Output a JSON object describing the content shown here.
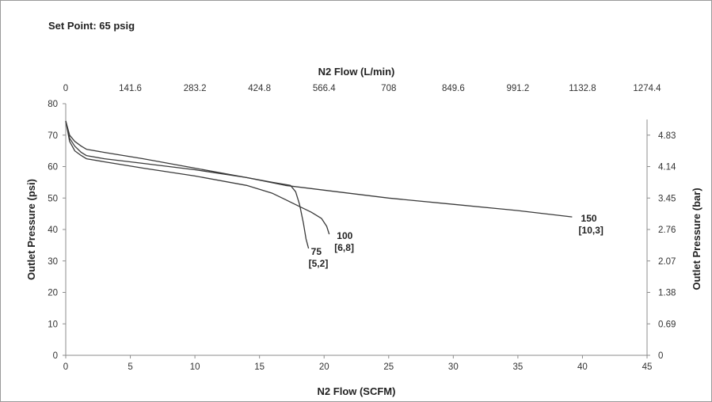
{
  "header": {
    "set_point": "Set Point: 65 psig"
  },
  "chart_data": {
    "type": "line",
    "title": "",
    "xlabel": "N2 Flow (SCFM)",
    "x2label": "N2 Flow (L/min)",
    "ylabel": "Outlet Pressure (psi)",
    "y2label": "Outlet Pressure (bar)",
    "xlim": [
      0,
      45
    ],
    "ylim": [
      0,
      80
    ],
    "x_ticks": [
      "0",
      "5",
      "10",
      "15",
      "20",
      "25",
      "30",
      "35",
      "40",
      "45"
    ],
    "x2_ticks": [
      "0",
      "141.6",
      "283.2",
      "424.8",
      "566.4",
      "708",
      "849.6",
      "991.2",
      "1132.8",
      "1274.4"
    ],
    "y_ticks": [
      "0",
      "10",
      "20",
      "30",
      "40",
      "50",
      "60",
      "70",
      "80"
    ],
    "y2_ticks": [
      {
        "value": 0,
        "label": "0"
      },
      {
        "value": 10,
        "label": "0.69"
      },
      {
        "value": 20,
        "label": "1.38"
      },
      {
        "value": 30,
        "label": "2.07"
      },
      {
        "value": 40,
        "label": "2.76"
      },
      {
        "value": 50,
        "label": "3.45"
      },
      {
        "value": 60,
        "label": "4.14"
      },
      {
        "value": 70,
        "label": "4.83"
      }
    ],
    "grid": false,
    "series": [
      {
        "name": "75 [5,2]",
        "label_lines": [
          "75",
          "[5,2]"
        ],
        "label_at": [
          18.8,
          32
        ],
        "points": [
          [
            0,
            74.5
          ],
          [
            0.3,
            69
          ],
          [
            0.7,
            66.5
          ],
          [
            1.2,
            64.5
          ],
          [
            1.6,
            63.5
          ],
          [
            3,
            62.5
          ],
          [
            6,
            61
          ],
          [
            10,
            59
          ],
          [
            14,
            56.5
          ],
          [
            16,
            55
          ],
          [
            17.4,
            54
          ],
          [
            17.8,
            52
          ],
          [
            18.1,
            48
          ],
          [
            18.4,
            42
          ],
          [
            18.6,
            37
          ],
          [
            18.8,
            34
          ]
        ]
      },
      {
        "name": "100 [6,8]",
        "label_lines": [
          "100",
          "[6,8]"
        ],
        "label_at": [
          20.8,
          37
        ],
        "points": [
          [
            0,
            74.5
          ],
          [
            0.3,
            68
          ],
          [
            0.7,
            65
          ],
          [
            1.2,
            63.5
          ],
          [
            1.6,
            62.5
          ],
          [
            3,
            61.5
          ],
          [
            6,
            59.5
          ],
          [
            10,
            57
          ],
          [
            14,
            54
          ],
          [
            16,
            51.5
          ],
          [
            17,
            49.5
          ],
          [
            18,
            47.5
          ],
          [
            19,
            45.5
          ],
          [
            19.8,
            43.5
          ],
          [
            20.2,
            41
          ],
          [
            20.4,
            38.5
          ]
        ]
      },
      {
        "name": "150 [10,3]",
        "label_lines": [
          "150",
          "[10,3]"
        ],
        "label_at": [
          39.7,
          42.5
        ],
        "points": [
          [
            0,
            74.5
          ],
          [
            0.3,
            70
          ],
          [
            0.7,
            68
          ],
          [
            1.2,
            66.5
          ],
          [
            1.6,
            65.5
          ],
          [
            3,
            64.5
          ],
          [
            6,
            62.5
          ],
          [
            10,
            59.5
          ],
          [
            14,
            56.5
          ],
          [
            17,
            54
          ],
          [
            20,
            52.5
          ],
          [
            25,
            50
          ],
          [
            30,
            48
          ],
          [
            35,
            46
          ],
          [
            39.2,
            44
          ]
        ]
      }
    ]
  }
}
